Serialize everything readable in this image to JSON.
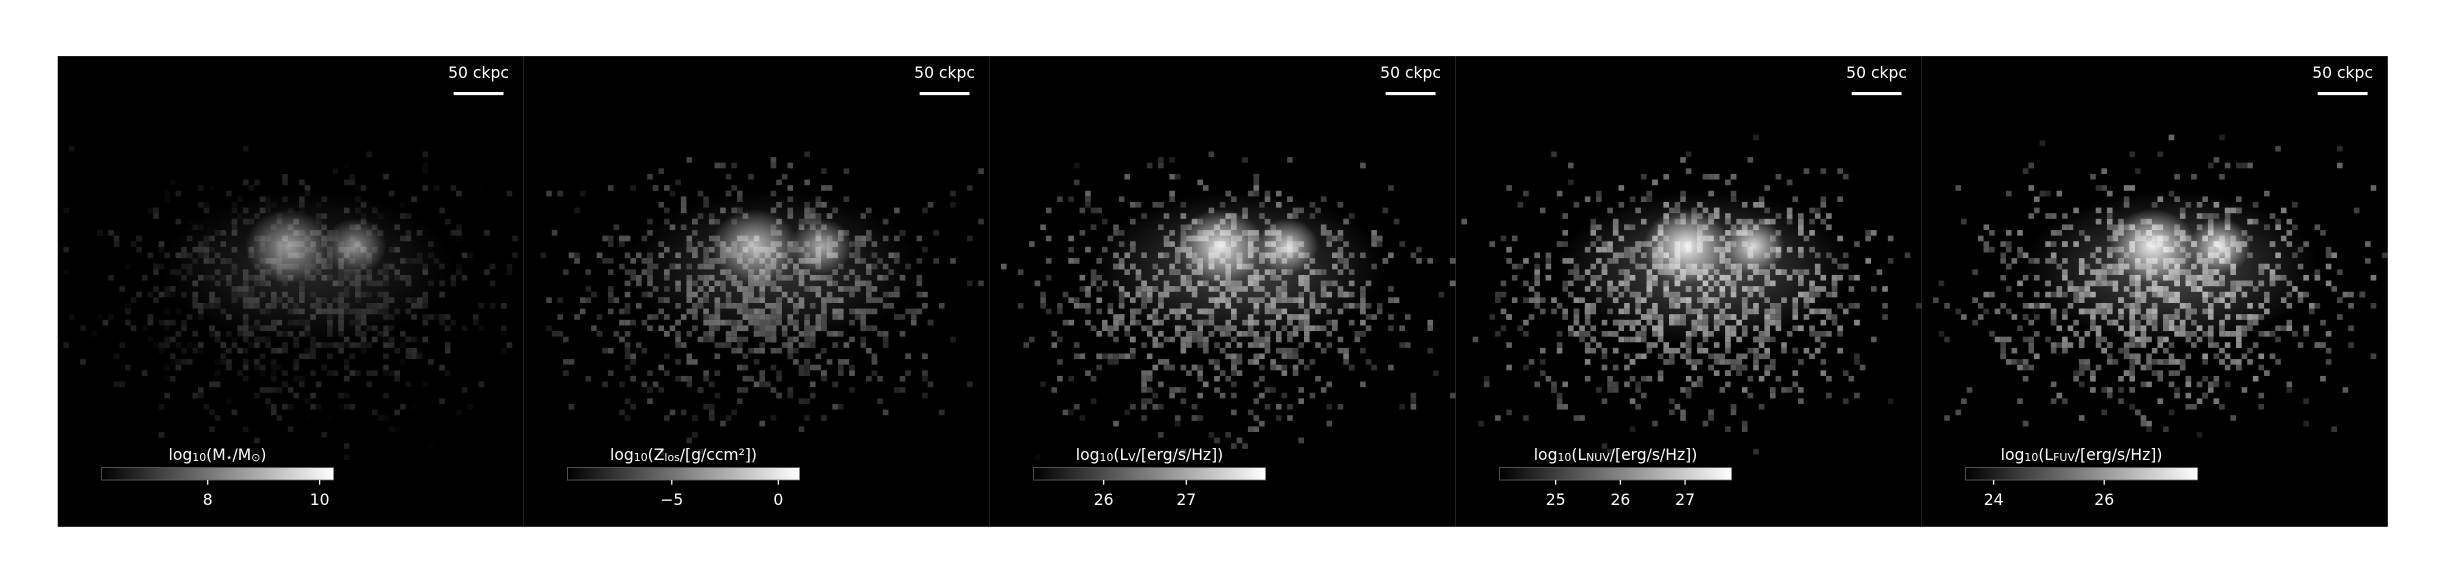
{
  "chart_data": [
    {
      "type": "image",
      "cmap": "gray",
      "scalebar_label": "50 ckpc",
      "colorbar_label": [
        "log",
        "10",
        "(M",
        "⋆",
        "/M",
        "⊙",
        ")"
      ],
      "clim": [
        6.1,
        10.25
      ],
      "cticks": [
        8,
        10
      ]
    },
    {
      "type": "image",
      "cmap": "gray",
      "scalebar_label": "50 ckpc",
      "colorbar_label": [
        "log",
        "10",
        "(Z",
        "los",
        "/[g/ccm²])"
      ],
      "clim": [
        -9.9,
        1.0
      ],
      "cticks": [
        {
          "value": -5,
          "label": "−5"
        },
        0
      ]
    },
    {
      "type": "image",
      "cmap": "gray",
      "scalebar_label": "50 ckpc",
      "colorbar_label": [
        "log",
        "10",
        "(L",
        "V",
        "/[erg/s/Hz])"
      ],
      "clim": [
        25.15,
        27.96
      ],
      "cticks": [
        26,
        27
      ]
    },
    {
      "type": "image",
      "cmap": "gray",
      "scalebar_label": "50 ckpc",
      "colorbar_label": [
        "log",
        "10",
        "(L",
        "NUV",
        "/[erg/s/Hz])"
      ],
      "clim": [
        24.13,
        27.72
      ],
      "cticks": [
        25,
        26,
        27
      ]
    },
    {
      "type": "image",
      "cmap": "gray",
      "scalebar_label": "50 ckpc",
      "colorbar_label": [
        "log",
        "10",
        "(L",
        "FUV",
        "/[erg/s/Hz])"
      ],
      "clim": [
        23.49,
        27.69
      ],
      "cticks": [
        24,
        26
      ]
    }
  ]
}
